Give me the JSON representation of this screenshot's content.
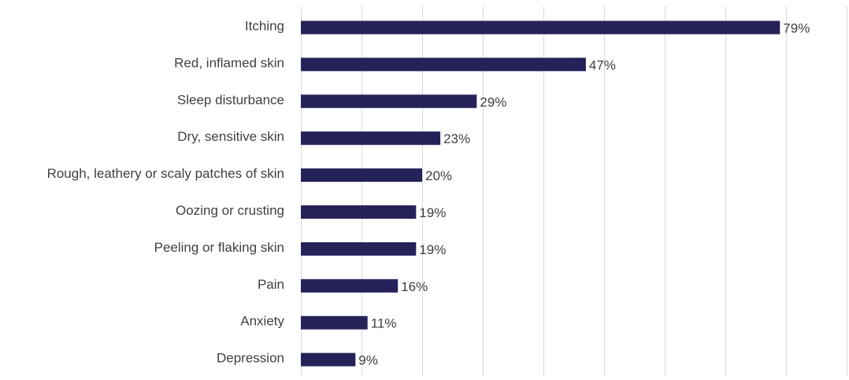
{
  "chart_data": {
    "type": "bar",
    "orientation": "horizontal",
    "categories": [
      "Itching",
      "Red, inflamed skin",
      "Sleep disturbance",
      "Dry, sensitive skin",
      "Rough, leathery or scaly patches of skin",
      "Oozing or crusting",
      "Peeling or flaking skin",
      "Pain",
      "Anxiety",
      "Depression"
    ],
    "values": [
      79,
      47,
      29,
      23,
      20,
      19,
      19,
      16,
      11,
      9
    ],
    "data_labels": [
      "79%",
      "47%",
      "29%",
      "23%",
      "20%",
      "19%",
      "19%",
      "16%",
      "11%",
      "9%"
    ],
    "unit": "%",
    "xlim": [
      0,
      90
    ],
    "x_gridline_step": 10,
    "grid": "vertical",
    "legend": "none",
    "bar_color": "#25225a",
    "gridline_color": "#d9d9d9",
    "label_color": "#404040"
  }
}
